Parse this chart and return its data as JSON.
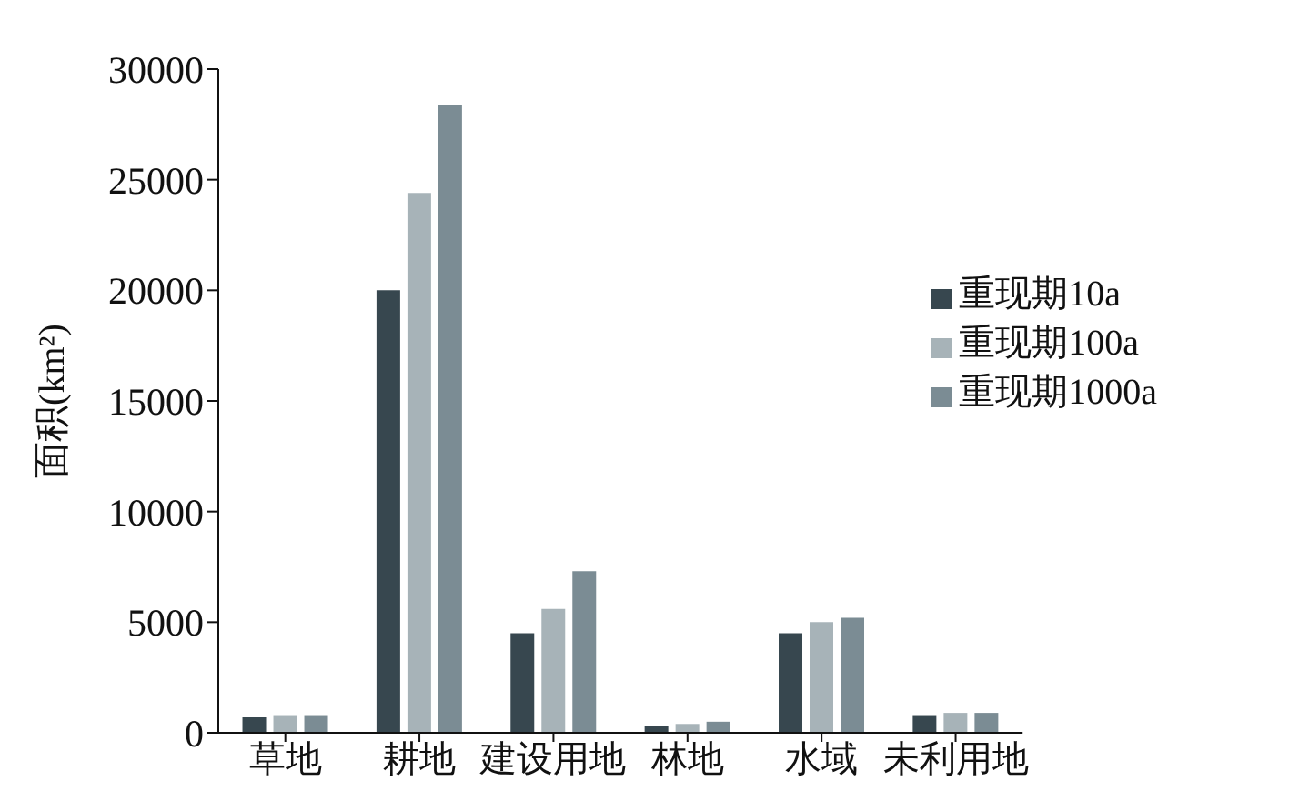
{
  "chart_data": {
    "type": "bar",
    "ylabel": "面积(km²)",
    "categories": [
      "草地",
      "耕地",
      "建设用地",
      "林地",
      "水域",
      "未利用地"
    ],
    "series": [
      {
        "name": "重现期10a",
        "color": "#37474f",
        "values": [
          700,
          20000,
          4500,
          300,
          4500,
          800
        ]
      },
      {
        "name": "重现期100a",
        "color": "#a7b3b8",
        "values": [
          800,
          24400,
          5600,
          400,
          5000,
          900
        ]
      },
      {
        "name": "重现期1000a",
        "color": "#7b8c94",
        "values": [
          800,
          28400,
          7300,
          500,
          5200,
          900
        ]
      }
    ],
    "ylim": [
      0,
      30000
    ],
    "yticks": [
      0,
      5000,
      10000,
      15000,
      20000,
      25000,
      30000
    ],
    "grid": false,
    "legend": "right"
  }
}
